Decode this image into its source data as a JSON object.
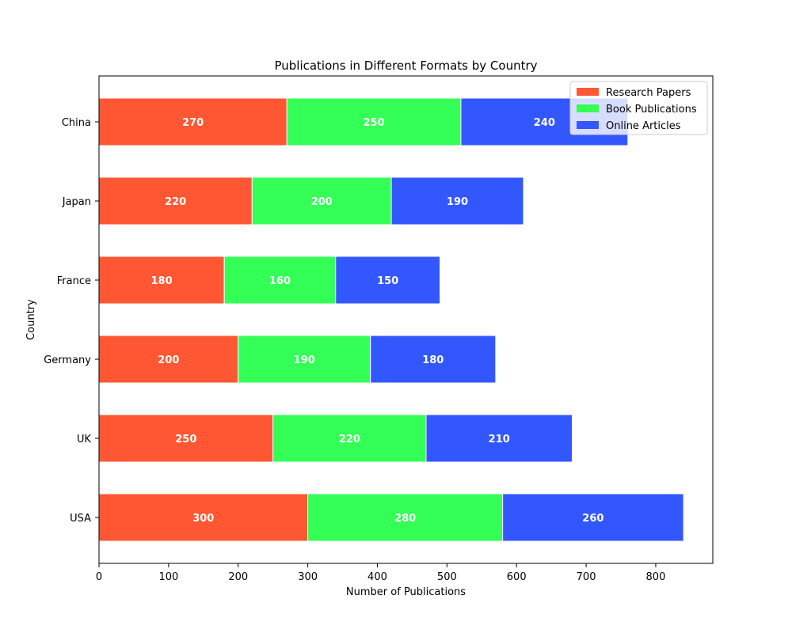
{
  "chart_data": {
    "type": "bar",
    "orientation": "horizontal",
    "stacked": true,
    "title": "Publications in Different Formats by Country",
    "xlabel": "Number of Publications",
    "ylabel": "Country",
    "categories": [
      "USA",
      "UK",
      "Germany",
      "France",
      "Japan",
      "China"
    ],
    "series": [
      {
        "name": "Research Papers",
        "color": "#ff5733",
        "values": [
          300,
          250,
          200,
          180,
          220,
          270
        ]
      },
      {
        "name": "Book Publications",
        "color": "#33ff57",
        "values": [
          280,
          220,
          190,
          160,
          200,
          250
        ]
      },
      {
        "name": "Online Articles",
        "color": "#3357ff",
        "values": [
          260,
          210,
          180,
          150,
          190,
          240
        ]
      }
    ],
    "xlim": [
      0,
      882
    ],
    "xticks": [
      0,
      100,
      200,
      300,
      400,
      500,
      600,
      700,
      800
    ],
    "grid": false,
    "legend_position": "top-right"
  }
}
